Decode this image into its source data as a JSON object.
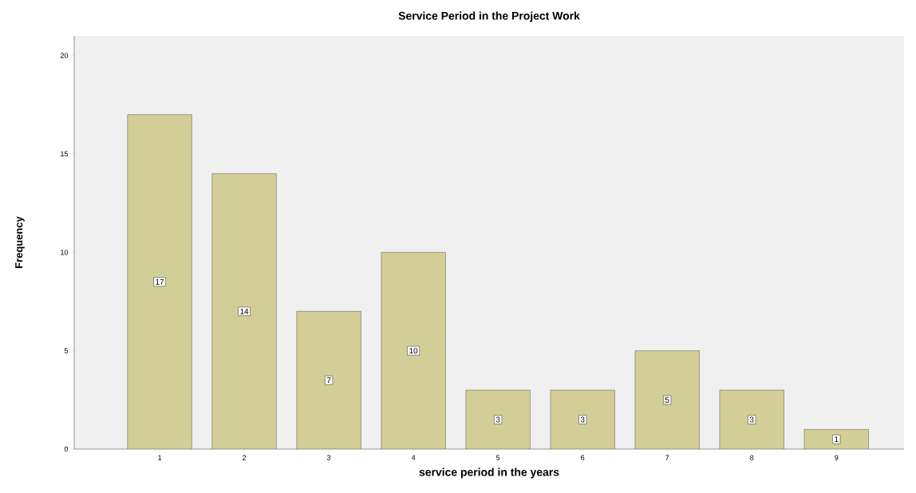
{
  "chart_data": {
    "type": "bar",
    "title": "Service Period in the Project Work",
    "xlabel": "service period in the years",
    "ylabel": "Frequency",
    "categories": [
      "1",
      "2",
      "3",
      "4",
      "5",
      "6",
      "7",
      "8",
      "9"
    ],
    "values": [
      17,
      14,
      7,
      10,
      3,
      3,
      5,
      3,
      1
    ],
    "color": "#d3ce97",
    "ylim": [
      0,
      21
    ],
    "yticks": [
      0,
      5,
      10,
      15,
      20
    ],
    "grid": false,
    "data_labels": true
  }
}
